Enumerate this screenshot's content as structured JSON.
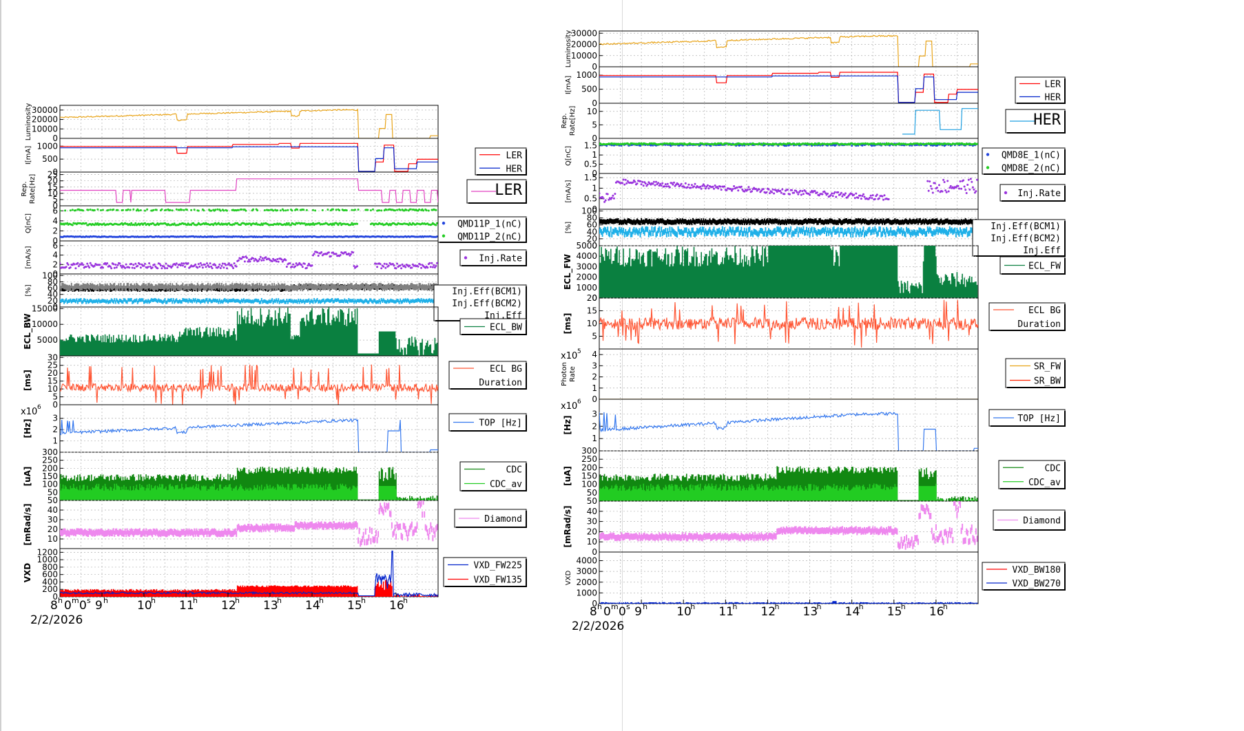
{
  "colors": {
    "luminosity": "#e8a317",
    "ler": "#ff0000",
    "her": "#0022cc",
    "rep_left": "#e040c0",
    "rep_right": "#1f9fe0",
    "q1": "#2244dd",
    "q2": "#22cc22",
    "inj_rate": "#9933dd",
    "eff_bcm1": "#000000",
    "eff_bcm2": "#808080",
    "eff": "#1fb0e8",
    "ecl": "#0a8040",
    "eclbg": "#ff5533",
    "sr_fw": "#e8a317",
    "sr_bw": "#ff2200",
    "top": "#3377ee",
    "cdc": "#118811",
    "cdc_av": "#22cc22",
    "diamond": "#ee88ee",
    "vxd_a": "#0022cc",
    "vxd_b": "#ff0000",
    "vxd_bw180": "#ff0000",
    "vxd_bw270": "#0022cc"
  },
  "time_axis": {
    "tick_labels": [
      "8",
      "9",
      "10",
      "11",
      "12",
      "13",
      "14",
      "15",
      "16"
    ],
    "hour_superscript": "h",
    "start_suffix": "m",
    "start_seconds": "0",
    "seconds_suffix": "s",
    "date": "2/2/2026"
  },
  "chart_data": [
    {
      "type": "line",
      "title": "",
      "x_range_hours": [
        8,
        17
      ],
      "panels": [
        {
          "id": "lum",
          "ylabel": "Luminosity",
          "yticks": [
            "0",
            "10000",
            "20000",
            "30000"
          ],
          "ylim": [
            0,
            35000
          ],
          "series": [
            {
              "color": "luminosity",
              "shape": "lum"
            }
          ]
        },
        {
          "id": "cur",
          "ylabel": "I[mA]",
          "yticks": [
            "0",
            "500",
            "1000"
          ],
          "ylim": [
            0,
            1300
          ],
          "legend": {
            "entries": [
              "LER",
              "HER"
            ],
            "colors": [
              "ler",
              "her"
            ],
            "marker": "line"
          },
          "series": [
            {
              "color": "ler",
              "shape": "ler"
            },
            {
              "color": "her",
              "shape": "her"
            }
          ]
        },
        {
          "id": "rep",
          "ylabel": "Rep. Rate[Hz]",
          "yticks": [
            "0",
            "5",
            "10",
            "15",
            "20",
            "25"
          ],
          "ylim": [
            0,
            27
          ],
          "legend": {
            "entries": [
              "LER"
            ],
            "colors": [
              "rep_left"
            ],
            "marker": "line",
            "big": true
          },
          "series": [
            {
              "color": "rep_left",
              "shape": "repL"
            }
          ]
        },
        {
          "id": "q",
          "ylabel": "Q[nC]",
          "yticks": [
            "0",
            "2",
            "4",
            "6"
          ],
          "ylim": [
            0,
            7
          ],
          "legend": {
            "entries": [
              "QMD11P_1(nC)",
              "QMD11P_2(nC)"
            ],
            "colors": [
              "q1",
              "q2"
            ],
            "marker": "dot"
          },
          "series": [
            {
              "color": "q1",
              "shape": "qLow",
              "dots": true
            },
            {
              "color": "q2",
              "shape": "qMid",
              "dots": true
            },
            {
              "color": "q2",
              "shape": "qTop",
              "dots": true
            }
          ]
        },
        {
          "id": "inj",
          "ylabel": "[mA/s]",
          "yticks": [
            "0",
            "2",
            "4",
            "6"
          ],
          "ylim": [
            0,
            7
          ],
          "legend": {
            "entries": [
              "Inj.Rate"
            ],
            "colors": [
              "inj_rate"
            ],
            "marker": "dot"
          },
          "series": [
            {
              "color": "inj_rate",
              "shape": "injL",
              "dots": true
            }
          ]
        },
        {
          "id": "eff",
          "ylabel": "[%]",
          "yticks": [
            "0",
            "20",
            "40",
            "60",
            "80",
            "100"
          ],
          "ylim": [
            0,
            105
          ],
          "legend": {
            "entries": [
              "Inj.Eff(BCM1)",
              "Inj.Eff(BCM2)",
              "Inj.Eff"
            ],
            "colors": [
              "eff_bcm1",
              "eff_bcm2",
              "eff"
            ],
            "marker": "none"
          },
          "series": [
            {
              "color": "eff_bcm1",
              "shape": "effBlack",
              "band": 6
            },
            {
              "color": "eff_bcm2",
              "shape": "effGray",
              "band": 8
            },
            {
              "color": "eff",
              "shape": "effBlue",
              "band": 5
            }
          ]
        },
        {
          "id": "ecl",
          "ylabel": "ECL_BW",
          "yticks": [
            "5000",
            "10000",
            "15000"
          ],
          "ylim": [
            0,
            15500
          ],
          "legend": {
            "entries": [
              "ECL_BW"
            ],
            "colors": [
              "ecl"
            ],
            "marker": "line"
          },
          "series": [
            {
              "color": "ecl",
              "shape": "eclL",
              "bars": true
            }
          ]
        },
        {
          "id": "eclbg",
          "ylabel": "[ms]",
          "yticks": [
            "0",
            "5",
            "10",
            "15",
            "20",
            "25",
            "30"
          ],
          "ylim": [
            0,
            31
          ],
          "legend": {
            "entries": [
              "ECL BG",
              "Duration"
            ],
            "colors": [
              "eclbg"
            ],
            "marker": "line"
          },
          "series": [
            {
              "color": "eclbg",
              "shape": "eclbg",
              "spiky": true
            }
          ]
        },
        {
          "id": "top",
          "ylabel": "[Hz]",
          "yticks": [
            "1",
            "2",
            "3"
          ],
          "ylim": [
            0,
            4.2
          ],
          "exponent": "6",
          "legend": {
            "entries": [
              "TOP [Hz]"
            ],
            "colors": [
              "top"
            ],
            "marker": "line"
          },
          "series": [
            {
              "color": "top",
              "shape": "top"
            }
          ]
        },
        {
          "id": "cdc",
          "ylabel": "[uA]",
          "yticks": [
            "50",
            "100",
            "150",
            "200",
            "250",
            "300"
          ],
          "ylim": [
            0,
            300
          ],
          "legend": {
            "entries": [
              "CDC",
              "CDC_av"
            ],
            "colors": [
              "cdc",
              "cdc_av"
            ],
            "marker": "line"
          },
          "series": [
            {
              "color": "cdc",
              "shape": "cdcTop",
              "bars": true
            },
            {
              "color": "cdc_av",
              "shape": "cdcAv",
              "bars": true
            }
          ]
        },
        {
          "id": "dia",
          "ylabel": "[mRad/s]",
          "yticks": [
            "10",
            "20",
            "30",
            "40",
            "50"
          ],
          "ylim": [
            0,
            50
          ],
          "legend": {
            "entries": [
              "Diamond"
            ],
            "colors": [
              "diamond"
            ],
            "marker": "line"
          },
          "series": [
            {
              "color": "diamond",
              "shape": "diaL",
              "band": 9
            }
          ]
        },
        {
          "id": "vxd",
          "ylabel": "VXD",
          "yticks": [
            "0",
            "200",
            "400",
            "600",
            "800",
            "1000",
            "1200"
          ],
          "ylim": [
            0,
            1300
          ],
          "legend": {
            "entries": [
              "VXD_FW225",
              "VXD_FW135"
            ],
            "colors": [
              "vxd_a",
              "vxd_b"
            ],
            "marker": "line"
          },
          "series": [
            {
              "color": "vxd_b",
              "shape": "vxdRed",
              "bars": true
            },
            {
              "color": "vxd_a",
              "shape": "vxdBlue",
              "spiky": true
            }
          ]
        }
      ]
    },
    {
      "type": "line",
      "title": "",
      "x_range_hours": [
        8,
        17
      ],
      "panels": [
        {
          "id": "lum",
          "ylabel": "Luminosity",
          "yticks": [
            "0",
            "10000",
            "20000",
            "30000"
          ],
          "ylim": [
            0,
            32000
          ],
          "series": [
            {
              "color": "luminosity",
              "shape": "lum"
            }
          ]
        },
        {
          "id": "cur",
          "ylabel": "I[mA]",
          "yticks": [
            "0",
            "500",
            "1000"
          ],
          "ylim": [
            0,
            1300
          ],
          "legend": {
            "entries": [
              "LER",
              "HER"
            ],
            "colors": [
              "ler",
              "her"
            ],
            "marker": "line"
          },
          "series": [
            {
              "color": "ler",
              "shape": "ler"
            },
            {
              "color": "her",
              "shape": "her"
            }
          ]
        },
        {
          "id": "rep",
          "ylabel": "Rep. Rate[Hz]",
          "yticks": [
            "0",
            "5",
            "10"
          ],
          "ylim": [
            0,
            13
          ],
          "legend": {
            "entries": [
              "HER"
            ],
            "colors": [
              "rep_right"
            ],
            "marker": "line",
            "big": true
          },
          "series": [
            {
              "color": "rep_right",
              "shape": "repR"
            }
          ]
        },
        {
          "id": "q",
          "ylabel": "Q[nC]",
          "yticks": [
            "0",
            "0.5",
            "1",
            "1.5"
          ],
          "ylim": [
            0,
            1.9
          ],
          "legend": {
            "entries": [
              "QMD8E_1(nC)",
              "QMD8E_2(nC)"
            ],
            "colors": [
              "q1",
              "q2"
            ],
            "marker": "dot"
          },
          "series": [
            {
              "color": "q1",
              "shape": "qR",
              "dots": true
            },
            {
              "color": "q2",
              "shape": "qR2",
              "dots": true
            }
          ]
        },
        {
          "id": "inj",
          "ylabel": "[mA/s]",
          "yticks": [
            "0",
            "0.5",
            "1",
            "1.5"
          ],
          "ylim": [
            0,
            1.7
          ],
          "legend": {
            "entries": [
              "Inj.Rate"
            ],
            "colors": [
              "inj_rate"
            ],
            "marker": "dot"
          },
          "series": [
            {
              "color": "inj_rate",
              "shape": "injR",
              "dots": true
            }
          ]
        },
        {
          "id": "eff",
          "ylabel": "[%]",
          "yticks": [
            "0",
            "20",
            "40",
            "60",
            "80",
            "100"
          ],
          "ylim": [
            0,
            105
          ],
          "legend": {
            "entries": [
              "Inj.Eff(BCM1)",
              "Inj.Eff(BCM2)",
              "Inj.Eff"
            ],
            "colors": [
              "eff_bcm1",
              "eff_bcm2",
              "eff"
            ],
            "marker": "none"
          },
          "series": [
            {
              "color": "eff_bcm1",
              "shape": "effRBlack",
              "band": 7
            },
            {
              "color": "eff",
              "shape": "effRBlue",
              "band": 8
            }
          ]
        },
        {
          "id": "ecl",
          "ylabel": "ECL_FW",
          "yticks": [
            "0",
            "1000",
            "2000",
            "3000",
            "4000",
            "5000"
          ],
          "ylim": [
            0,
            5000
          ],
          "legend": {
            "entries": [
              "ECL_FW"
            ],
            "colors": [
              "ecl"
            ],
            "marker": "line"
          },
          "series": [
            {
              "color": "ecl",
              "shape": "eclR",
              "bars": true
            }
          ]
        },
        {
          "id": "eclbg",
          "ylabel": "[ms]",
          "yticks": [
            "5",
            "10",
            "15",
            "20"
          ],
          "ylim": [
            0,
            20
          ],
          "legend": {
            "entries": [
              "ECL BG",
              "Duration"
            ],
            "colors": [
              "eclbg"
            ],
            "marker": "line"
          },
          "series": [
            {
              "color": "eclbg",
              "shape": "eclbgR",
              "spiky": true
            }
          ]
        },
        {
          "id": "photon",
          "ylabel": "Photon Rate",
          "yticks": [
            "0",
            "1",
            "2",
            "3",
            "4"
          ],
          "ylim": [
            0,
            4.5
          ],
          "exponent": "5",
          "legend": {
            "entries": [
              "SR_FW",
              "SR_BW"
            ],
            "colors": [
              "sr_fw",
              "sr_bw"
            ],
            "marker": "line"
          },
          "series": [
            {
              "color": "sr_fw",
              "shape": "zero"
            }
          ]
        },
        {
          "id": "top",
          "ylabel": "[Hz]",
          "yticks": [
            "1",
            "2",
            "3"
          ],
          "ylim": [
            0,
            4.2
          ],
          "exponent": "6",
          "legend": {
            "entries": [
              "TOP [Hz]"
            ],
            "colors": [
              "top"
            ],
            "marker": "line"
          },
          "series": [
            {
              "color": "top",
              "shape": "topR"
            }
          ]
        },
        {
          "id": "cdc",
          "ylabel": "[uA]",
          "yticks": [
            "50",
            "100",
            "150",
            "200",
            "250",
            "300"
          ],
          "ylim": [
            0,
            300
          ],
          "legend": {
            "entries": [
              "CDC",
              "CDC_av"
            ],
            "colors": [
              "cdc",
              "cdc_av"
            ],
            "marker": "line"
          },
          "series": [
            {
              "color": "cdc",
              "shape": "cdcTop",
              "bars": true
            },
            {
              "color": "cdc_av",
              "shape": "cdcAv",
              "bars": true
            }
          ]
        },
        {
          "id": "dia",
          "ylabel": "[mRad/s]",
          "yticks": [
            "0",
            "10",
            "20",
            "30",
            "40",
            "50"
          ],
          "ylim": [
            0,
            50
          ],
          "legend": {
            "entries": [
              "Diamond"
            ],
            "colors": [
              "diamond"
            ],
            "marker": "line"
          },
          "series": [
            {
              "color": "diamond",
              "shape": "diaR",
              "band": 9
            }
          ]
        },
        {
          "id": "vxd",
          "ylabel": "VXD",
          "yticks": [
            "0",
            "1000",
            "2000",
            "3000",
            "4000"
          ],
          "ylim": [
            0,
            4800
          ],
          "legend": {
            "entries": [
              "VXD_BW180",
              "VXD_BW270"
            ],
            "colors": [
              "vxd_bw180",
              "vxd_bw270"
            ],
            "marker": "line"
          },
          "series": [
            {
              "color": "vxd_bw270",
              "shape": "vxdR",
              "bars": true
            }
          ]
        }
      ]
    }
  ]
}
